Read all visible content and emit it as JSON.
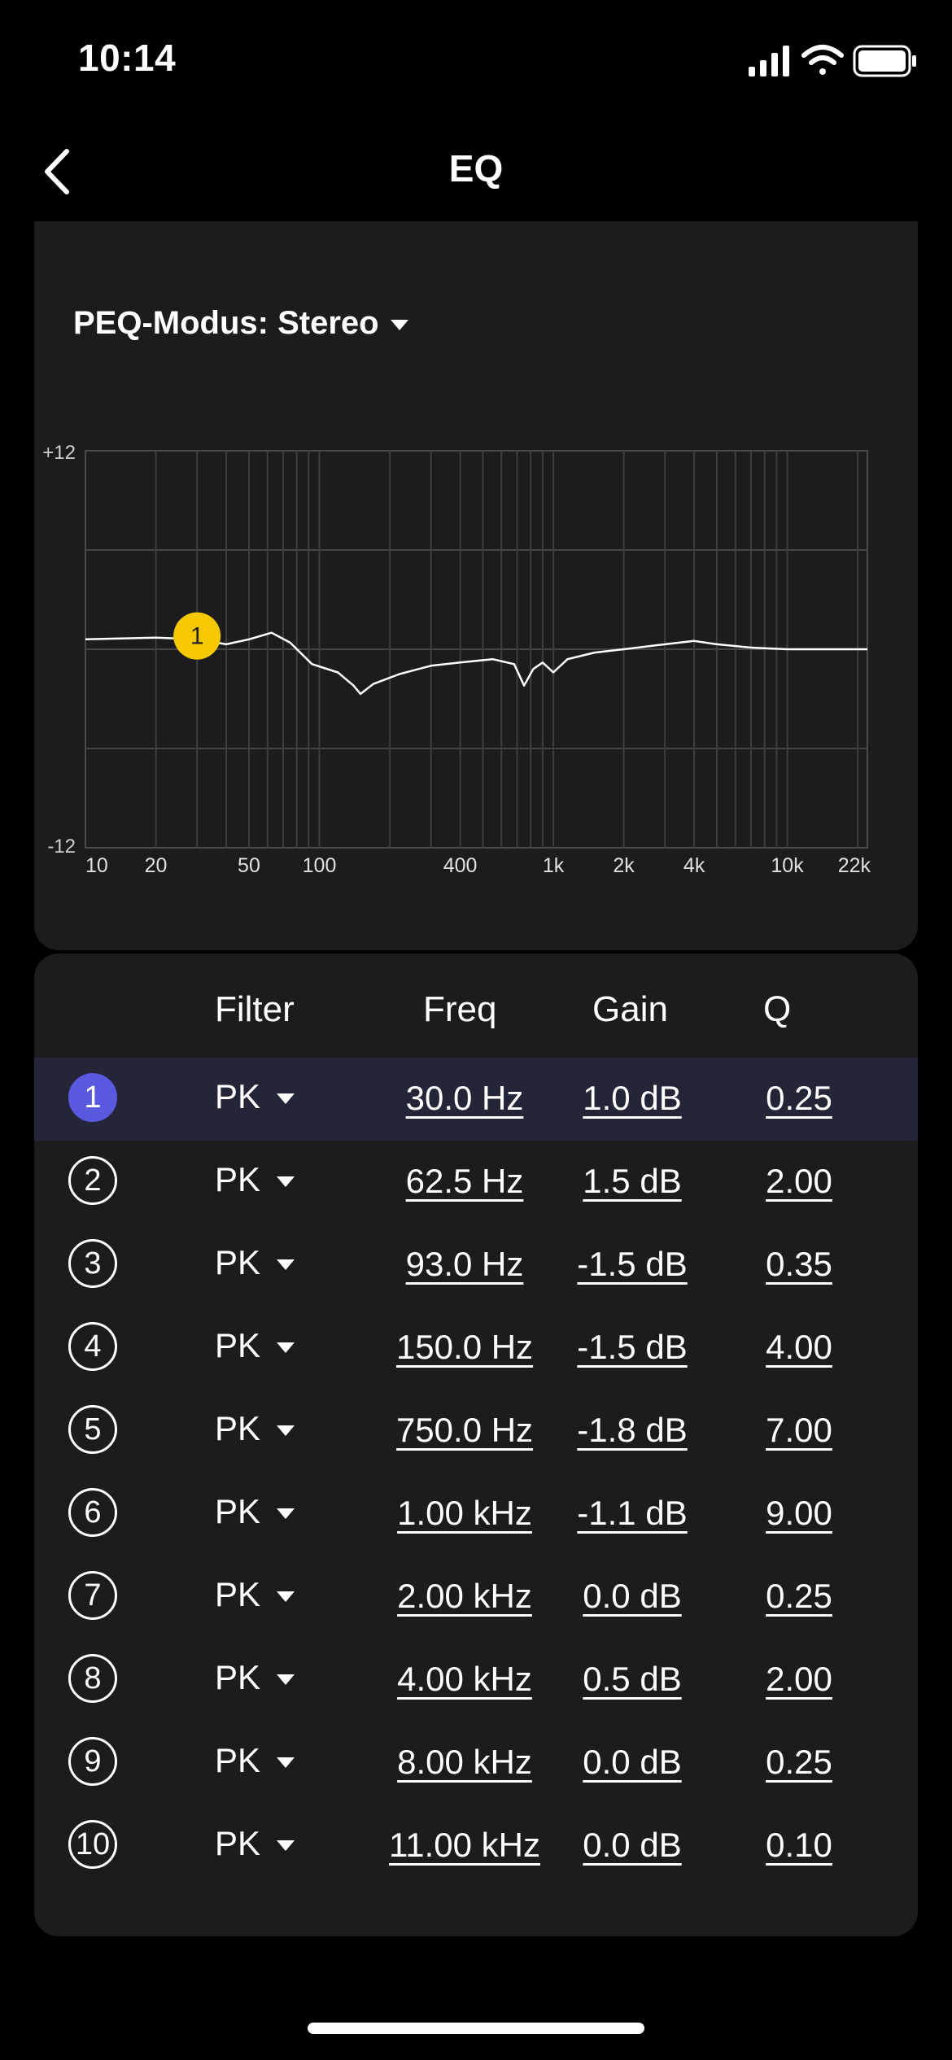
{
  "status": {
    "time": "10:14"
  },
  "nav": {
    "title": "EQ"
  },
  "mode": {
    "label": "PEQ-Modus: Stereo"
  },
  "table": {
    "headers": {
      "filter": "Filter",
      "freq": "Freq",
      "gain": "Gain",
      "q": "Q"
    },
    "rows": [
      {
        "n": "1",
        "filter": "PK",
        "freq": "30.0 Hz",
        "gain": "1.0 dB",
        "q": "0.25"
      },
      {
        "n": "2",
        "filter": "PK",
        "freq": "62.5 Hz",
        "gain": "1.5 dB",
        "q": "2.00"
      },
      {
        "n": "3",
        "filter": "PK",
        "freq": "93.0 Hz",
        "gain": "-1.5 dB",
        "q": "0.35"
      },
      {
        "n": "4",
        "filter": "PK",
        "freq": "150.0 Hz",
        "gain": "-1.5 dB",
        "q": "4.00"
      },
      {
        "n": "5",
        "filter": "PK",
        "freq": "750.0 Hz",
        "gain": "-1.8 dB",
        "q": "7.00"
      },
      {
        "n": "6",
        "filter": "PK",
        "freq": "1.00 kHz",
        "gain": "-1.1 dB",
        "q": "9.00"
      },
      {
        "n": "7",
        "filter": "PK",
        "freq": "2.00 kHz",
        "gain": "0.0 dB",
        "q": "0.25"
      },
      {
        "n": "8",
        "filter": "PK",
        "freq": "4.00 kHz",
        "gain": "0.5 dB",
        "q": "2.00"
      },
      {
        "n": "9",
        "filter": "PK",
        "freq": "8.00 kHz",
        "gain": "0.0 dB",
        "q": "0.25"
      },
      {
        "n": "10",
        "filter": "PK",
        "freq": "11.00 kHz",
        "gain": "0.0 dB",
        "q": "0.10"
      }
    ]
  },
  "chart_data": {
    "type": "line",
    "xscale": "log",
    "xlim": [
      10,
      22000
    ],
    "ylim": [
      -12,
      12
    ],
    "ytick_labels": [
      "+12",
      "-12"
    ],
    "xtick_labels": [
      {
        "v": 10,
        "label": "10"
      },
      {
        "v": 20,
        "label": "20"
      },
      {
        "v": 50,
        "label": "50"
      },
      {
        "v": 100,
        "label": "100"
      },
      {
        "v": 400,
        "label": "400"
      },
      {
        "v": 1000,
        "label": "1k"
      },
      {
        "v": 2000,
        "label": "2k"
      },
      {
        "v": 4000,
        "label": "4k"
      },
      {
        "v": 10000,
        "label": "10k"
      },
      {
        "v": 22000,
        "label": "22k"
      }
    ],
    "grid": true,
    "selected_band": {
      "label": "1",
      "freq": 30,
      "gain": 1.0
    },
    "curve": [
      [
        10,
        0.6
      ],
      [
        20,
        0.7
      ],
      [
        30,
        0.6
      ],
      [
        40,
        0.3
      ],
      [
        50,
        0.6
      ],
      [
        62.5,
        1.0
      ],
      [
        75,
        0.4
      ],
      [
        93,
        -0.9
      ],
      [
        120,
        -1.4
      ],
      [
        140,
        -2.2
      ],
      [
        150,
        -2.7
      ],
      [
        170,
        -2.1
      ],
      [
        220,
        -1.5
      ],
      [
        300,
        -1.0
      ],
      [
        400,
        -0.8
      ],
      [
        550,
        -0.6
      ],
      [
        680,
        -0.9
      ],
      [
        750,
        -2.2
      ],
      [
        820,
        -1.2
      ],
      [
        900,
        -0.8
      ],
      [
        1000,
        -1.4
      ],
      [
        1150,
        -0.6
      ],
      [
        1500,
        -0.2
      ],
      [
        2000,
        0.0
      ],
      [
        3000,
        0.3
      ],
      [
        4000,
        0.5
      ],
      [
        5000,
        0.3
      ],
      [
        7000,
        0.1
      ],
      [
        10000,
        0.0
      ],
      [
        22000,
        0.0
      ]
    ]
  }
}
